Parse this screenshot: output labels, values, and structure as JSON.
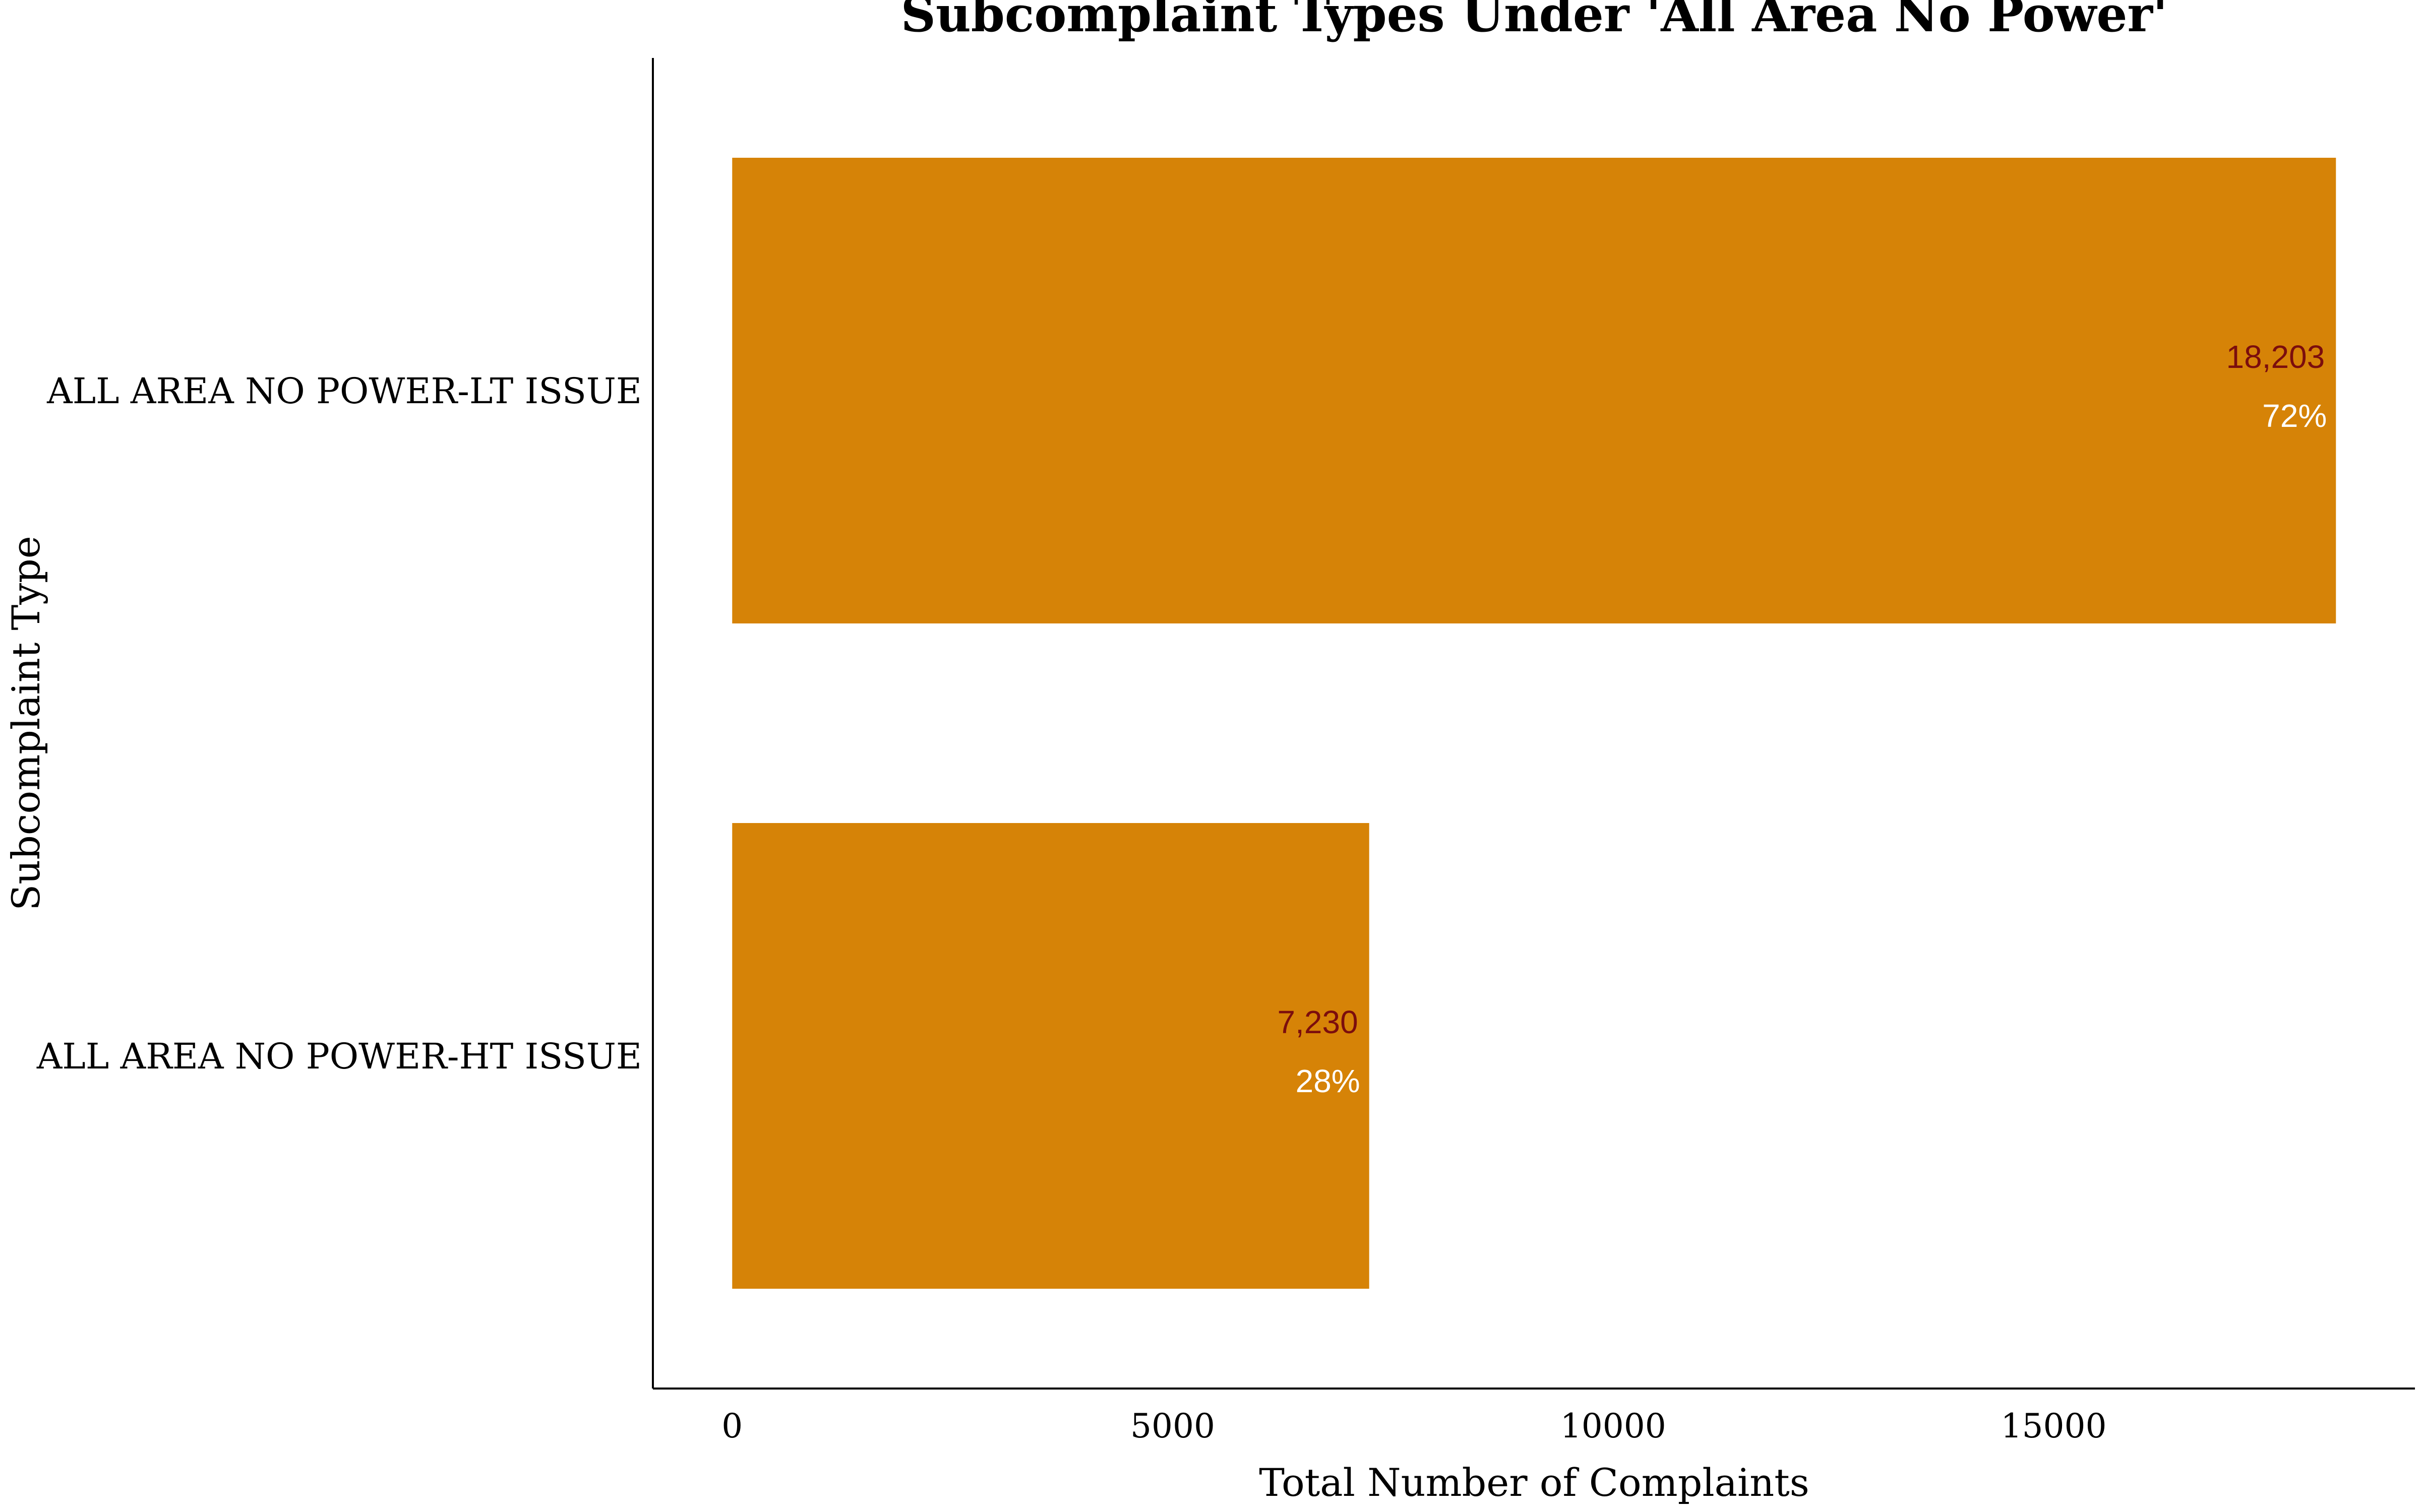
{
  "chart_data": {
    "type": "bar",
    "orientation": "horizontal",
    "title": "Subcomplaint Types Under 'All Area No Power'",
    "xlabel": "Total Number of Complaints",
    "ylabel": "Subcomplaint Type",
    "categories": [
      "ALL AREA NO POWER-LT ISSUE",
      "ALL AREA NO POWER-HT ISSUE"
    ],
    "values": [
      18203,
      7230
    ],
    "value_labels": [
      "18,203",
      "7,230"
    ],
    "percent_labels": [
      "72%",
      "28%"
    ],
    "x_ticks": [
      0,
      5000,
      10000,
      15000
    ],
    "x_tick_labels": [
      "0",
      "5000",
      "10000",
      "15000"
    ],
    "xlim": [
      -900,
      19100
    ],
    "grid": false,
    "legend": "none",
    "colors": {
      "bar": "#D68307",
      "value_label": "#7B0D0D",
      "percent_label": "#FFFFFF",
      "axis": "#000000",
      "text": "#000000"
    }
  }
}
